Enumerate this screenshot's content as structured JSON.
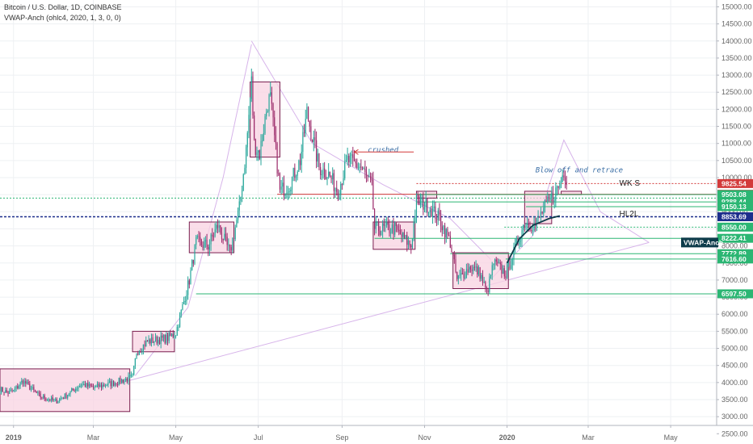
{
  "header": {
    "title": "Bitcoin / U.S. Dollar, 1D, COINBASE",
    "indicator": "VWAP-Anch (ohlc4, 2020, 1, 3, 0, 0)"
  },
  "colors": {
    "up": "#26a69a",
    "down": "#9c2b6b",
    "box_fill": "#f8d3e2",
    "box_stroke": "#7a1e4f",
    "green_line": "#2bb673",
    "red_line": "#d33a3a",
    "blue_line": "#1c2e8c",
    "vwap_line": "#0d3b4a",
    "purple_line": "#d7b4ea"
  },
  "chart_data": {
    "type": "candlestick",
    "y_axis": {
      "ticks": [
        "15000.00",
        "14500.00",
        "14000.00",
        "13500.00",
        "13000.00",
        "12500.00",
        "12000.00",
        "11500.00",
        "11000.00",
        "10500.00",
        "10000.00",
        "9500.00",
        "9000.00",
        "8500.00",
        "8000.00",
        "7500.00",
        "7000.00",
        "6500.00",
        "6000.00",
        "5500.00",
        "5000.00",
        "4500.00",
        "4000.00",
        "3500.00",
        "3000.00",
        "2500.00"
      ],
      "ylim": [
        2200,
        15200
      ]
    },
    "x_axis": {
      "ticks": [
        {
          "label": "2019",
          "date": "2019-01-01"
        },
        {
          "label": "Mar",
          "date": "2019-03-01"
        },
        {
          "label": "May",
          "date": "2019-05-01"
        },
        {
          "label": "Jul",
          "date": "2019-07-01"
        },
        {
          "label": "Sep",
          "date": "2019-09-01"
        },
        {
          "label": "Nov",
          "date": "2019-11-01"
        },
        {
          "label": "2020",
          "date": "2020-01-01"
        },
        {
          "label": "Mar",
          "date": "2020-03-01"
        },
        {
          "label": "May",
          "date": "2020-05-01"
        }
      ],
      "xlim": [
        "2018-12-22",
        "2020-06-04"
      ]
    },
    "price_path": [
      [
        "2018-12-22",
        3800
      ],
      [
        "2018-12-28",
        3700
      ],
      [
        "2019-01-01",
        3750
      ],
      [
        "2019-01-08",
        4050
      ],
      [
        "2019-01-20",
        3600
      ],
      [
        "2019-02-01",
        3450
      ],
      [
        "2019-02-08",
        3600
      ],
      [
        "2019-02-20",
        3950
      ],
      [
        "2019-03-01",
        3850
      ],
      [
        "2019-03-15",
        3980
      ],
      [
        "2019-03-30",
        4150
      ],
      [
        "2019-04-02",
        4900
      ],
      [
        "2019-04-10",
        5200
      ],
      [
        "2019-04-25",
        5300
      ],
      [
        "2019-05-01",
        5450
      ],
      [
        "2019-05-11",
        7000
      ],
      [
        "2019-05-16",
        8100
      ],
      [
        "2019-05-25",
        8000
      ],
      [
        "2019-06-01",
        8600
      ],
      [
        "2019-06-10",
        7800
      ],
      [
        "2019-06-17",
        9100
      ],
      [
        "2019-06-22",
        10800
      ],
      [
        "2019-06-26",
        12800
      ],
      [
        "2019-06-28",
        11000
      ],
      [
        "2019-07-02",
        10700
      ],
      [
        "2019-07-08",
        12200
      ],
      [
        "2019-07-10",
        12300
      ],
      [
        "2019-07-17",
        9600
      ],
      [
        "2019-07-24",
        9800
      ],
      [
        "2019-08-01",
        10500
      ],
      [
        "2019-08-06",
        11900
      ],
      [
        "2019-08-15",
        10300
      ],
      [
        "2019-08-22",
        10100
      ],
      [
        "2019-08-29",
        9600
      ],
      [
        "2019-09-05",
        10500
      ],
      [
        "2019-09-15",
        10300
      ],
      [
        "2019-09-23",
        9700
      ],
      [
        "2019-09-25",
        8500
      ],
      [
        "2019-10-10",
        8500
      ],
      [
        "2019-10-22",
        8000
      ],
      [
        "2019-10-26",
        9300
      ],
      [
        "2019-11-03",
        9200
      ],
      [
        "2019-11-12",
        8800
      ],
      [
        "2019-11-20",
        8100
      ],
      [
        "2019-11-25",
        7000
      ],
      [
        "2019-12-05",
        7400
      ],
      [
        "2019-12-12",
        7200
      ],
      [
        "2019-12-17",
        6600
      ],
      [
        "2019-12-22",
        7500
      ],
      [
        "2019-12-31",
        7200
      ],
      [
        "2020-01-06",
        7800
      ],
      [
        "2020-01-14",
        8700
      ],
      [
        "2020-01-22",
        8600
      ],
      [
        "2020-01-27",
        9000
      ],
      [
        "2020-02-03",
        9400
      ],
      [
        "2020-02-09",
        9800
      ],
      [
        "2020-02-12",
        10200
      ],
      [
        "2020-02-15",
        9900
      ]
    ],
    "boxes": [
      {
        "from": "2018-12-22",
        "to": "2019-03-28",
        "low": 3150,
        "high": 4400
      },
      {
        "from": "2019-03-30",
        "to": "2019-04-30",
        "low": 4900,
        "high": 5500
      },
      {
        "from": "2019-05-11",
        "to": "2019-06-13",
        "low": 7800,
        "high": 8700
      },
      {
        "from": "2019-06-25",
        "to": "2019-07-17",
        "low": 10600,
        "high": 12800
      },
      {
        "from": "2019-09-24",
        "to": "2019-10-25",
        "low": 7900,
        "high": 8700
      },
      {
        "from": "2019-11-22",
        "to": "2020-01-02",
        "low": 6750,
        "high": 7800
      },
      {
        "from": "2019-10-26",
        "to": "2019-11-10",
        "low": 9400,
        "high": 9600
      },
      {
        "from": "2020-01-14",
        "to": "2020-02-03",
        "low": 8650,
        "high": 9600
      },
      {
        "from": "2020-02-10",
        "to": "2020-02-25",
        "low": 9500,
        "high": 9600
      }
    ],
    "levels": [
      {
        "value": 9825.54,
        "label": "9825.54",
        "color": "#d33a3a",
        "style": "dotted",
        "from": "2019-10-26"
      },
      {
        "value": 9512.44,
        "label": "9512.44",
        "color": "#d33a3a",
        "style": "solid",
        "from": "2019-07-15"
      },
      {
        "value": 9503.08,
        "label": "9503.08",
        "color": "#2bb673",
        "style": "solid",
        "from": "2019-10-26"
      },
      {
        "value": 9288.44,
        "label": "9288.44",
        "color": "#2bb673",
        "style": "solid",
        "from": "2019-10-26"
      },
      {
        "value": 9150.13,
        "label": "9150.13",
        "color": "#2bb673",
        "style": "solid",
        "from": "2020-01-15"
      },
      {
        "value": 8853.69,
        "label": "8853.69",
        "color": "#1c2e8c",
        "style": "dashed",
        "from": "2018-12-22"
      },
      {
        "value": 8550.0,
        "label": "8550.00",
        "color": "#2bb673",
        "style": "dotted",
        "from": "2019-12-30"
      },
      {
        "value": 8222.41,
        "label": "8222.41",
        "color": "#2bb673",
        "style": "solid",
        "from": "2019-09-25"
      },
      {
        "value": 7772.89,
        "label": "7772.89",
        "color": "#2bb673",
        "style": "solid",
        "from": "2019-11-20"
      },
      {
        "value": 7616.6,
        "label": "7616.60",
        "color": "#2bb673",
        "style": "solid",
        "from": "2019-12-31"
      },
      {
        "value": 6597.5,
        "label": "6597.50",
        "color": "#2bb673",
        "style": "solid",
        "from": "2019-05-16"
      }
    ],
    "extra_lines": [
      {
        "value": 9400,
        "color": "#2bb673",
        "style": "dotted",
        "from": "2018-12-22"
      }
    ],
    "vwap": {
      "label": "VWAP-Anch",
      "value": 8100,
      "points": [
        [
          "2020-01-01",
          7500
        ],
        [
          "2020-01-10",
          8200
        ],
        [
          "2020-01-20",
          8600
        ],
        [
          "2020-02-01",
          8800
        ],
        [
          "2020-02-09",
          8880
        ]
      ]
    },
    "trendlines": [
      {
        "points": [
          [
            "2019-03-22",
            4000
          ],
          [
            "2020-04-15",
            8100
          ]
        ]
      },
      {
        "points": [
          [
            "2019-06-26",
            14000
          ],
          [
            "2019-08-10",
            11000
          ],
          [
            "2019-10-01",
            9800
          ],
          [
            "2019-11-20",
            8800
          ],
          [
            "2019-12-20",
            7600
          ]
        ]
      },
      {
        "points": [
          [
            "2019-12-17",
            6900
          ],
          [
            "2020-01-20",
            8300
          ],
          [
            "2020-02-12",
            11100
          ],
          [
            "2020-03-10",
            9000
          ],
          [
            "2020-04-15",
            8100
          ]
        ]
      },
      {
        "points": [
          [
            "2019-04-01",
            4200
          ],
          [
            "2019-05-10",
            6200
          ],
          [
            "2019-06-05",
            10000
          ],
          [
            "2019-06-26",
            13900
          ]
        ]
      }
    ],
    "annotations": [
      {
        "text": "crushed",
        "date": "2019-09-20",
        "value": 10750
      },
      {
        "text": "Blow off and retrace",
        "date": "2020-01-22",
        "value": 10150
      }
    ],
    "labels": [
      {
        "text": "WK S",
        "date": "2020-03-24",
        "value": 9760
      },
      {
        "text": "HL2L",
        "date": "2020-03-24",
        "value": 8870
      }
    ],
    "annotation_arrow": {
      "from": [
        "2019-10-24",
        10750
      ],
      "to": [
        "2019-09-10",
        10750
      ]
    },
    "vwap_tag": "VWAP-Anch"
  }
}
